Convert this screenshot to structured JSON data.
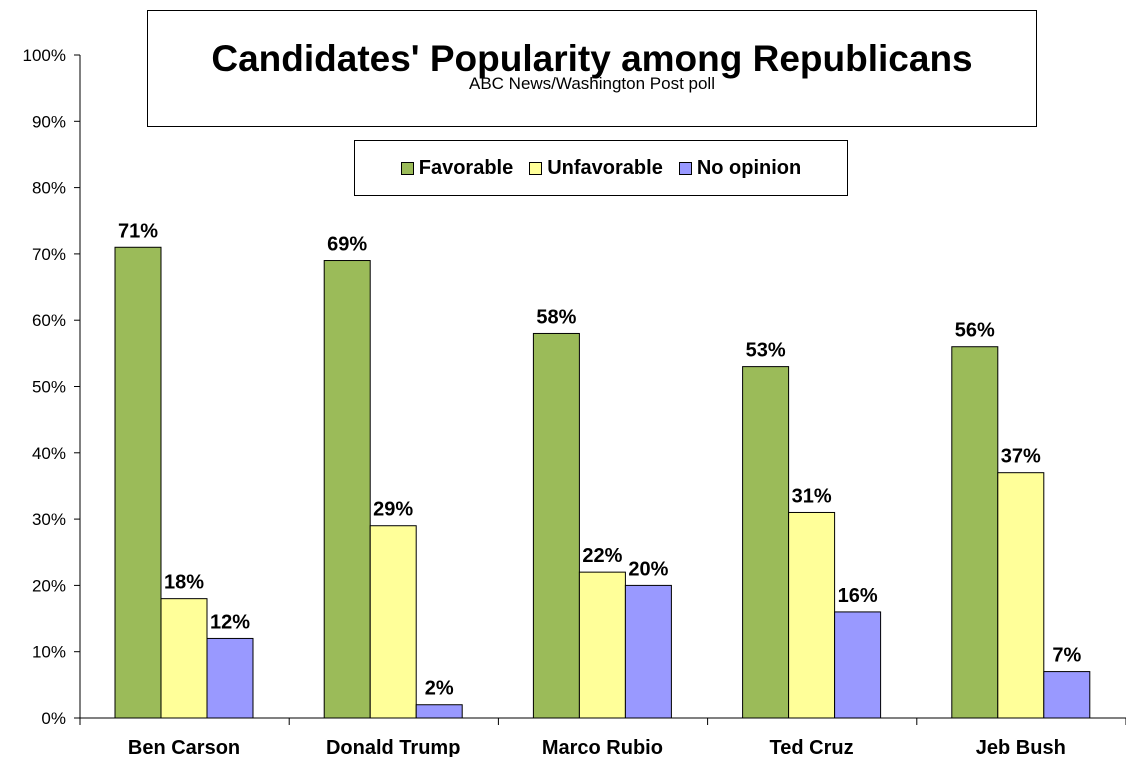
{
  "chart_data": {
    "type": "bar",
    "title": "Candidates' Popularity among Republicans",
    "subtitle": "ABC News/Washington  Post poll",
    "categories": [
      "Ben Carson",
      "Donald Trump",
      "Marco Rubio",
      "Ted Cruz",
      "Jeb Bush"
    ],
    "series": [
      {
        "name": "Favorable",
        "color": "#9BBB59",
        "values": [
          71,
          69,
          58,
          53,
          56
        ],
        "labels": [
          "71%",
          "69%",
          "58%",
          "53%",
          "56%"
        ]
      },
      {
        "name": "Unfavorable",
        "color": "#FFFF99",
        "values": [
          18,
          29,
          22,
          31,
          37
        ],
        "labels": [
          "18%",
          "29%",
          "22%",
          "31%",
          "37%"
        ]
      },
      {
        "name": "No opinion",
        "color": "#9999FF",
        "values": [
          12,
          2,
          20,
          16,
          7
        ],
        "labels": [
          "12%",
          "2%",
          "20%",
          "16%",
          "7%"
        ]
      }
    ],
    "yticks": [
      "0%",
      "10%",
      "20%",
      "30%",
      "40%",
      "50%",
      "60%",
      "70%",
      "80%",
      "90%",
      "100%"
    ],
    "ylim": [
      0,
      100
    ],
    "xlabel": "",
    "ylabel": "",
    "grid": false,
    "legend_position": "top"
  }
}
